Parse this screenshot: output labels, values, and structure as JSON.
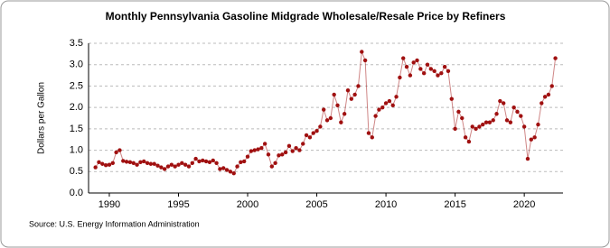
{
  "chart_data": {
    "type": "line",
    "title": "Monthly Pennsylvania Gasoline Midgrade Wholesale/Resale Price by Refiners",
    "y_label": "Dollars per Gallon",
    "source": "Source: U.S. Energy Information Administration",
    "xlim": [
      1988.5,
      2022.8
    ],
    "ylim": [
      0,
      3.5
    ],
    "xticks": [
      1990,
      1995,
      2000,
      2005,
      2010,
      2015,
      2020
    ],
    "yticks": [
      {
        "value": 0,
        "label": "0.0"
      },
      0.5,
      {
        "value": 1,
        "label": "1.0"
      },
      1.5,
      {
        "value": 2,
        "label": "2.0"
      },
      2.5,
      {
        "value": 3,
        "label": "3.0"
      },
      3.5
    ],
    "grid": true,
    "series": [
      {
        "name": "Midgrade",
        "color": "#a01010",
        "x": [
          1989,
          1989.25,
          1989.5,
          1989.75,
          1990,
          1990.25,
          1990.5,
          1990.75,
          1991,
          1991.25,
          1991.5,
          1991.75,
          1992,
          1992.25,
          1992.5,
          1992.75,
          1993,
          1993.25,
          1993.5,
          1993.75,
          1994,
          1994.25,
          1994.5,
          1994.75,
          1995,
          1995.25,
          1995.5,
          1995.75,
          1996,
          1996.25,
          1996.5,
          1996.75,
          1997,
          1997.25,
          1997.5,
          1997.75,
          1998,
          1998.25,
          1998.5,
          1998.75,
          1999,
          1999.25,
          1999.5,
          1999.75,
          2000,
          2000.25,
          2000.5,
          2000.75,
          2001,
          2001.25,
          2001.5,
          2001.75,
          2002,
          2002.25,
          2002.5,
          2002.75,
          2003,
          2003.25,
          2003.5,
          2003.75,
          2004,
          2004.25,
          2004.5,
          2004.75,
          2005,
          2005.25,
          2005.5,
          2005.75,
          2006,
          2006.25,
          2006.5,
          2006.75,
          2007,
          2007.25,
          2007.5,
          2007.75,
          2008,
          2008.25,
          2008.5,
          2008.75,
          2009,
          2009.25,
          2009.5,
          2009.75,
          2010,
          2010.25,
          2010.5,
          2010.75,
          2011,
          2011.25,
          2011.5,
          2011.75,
          2012,
          2012.25,
          2012.5,
          2012.75,
          2013,
          2013.25,
          2013.5,
          2013.75,
          2014,
          2014.25,
          2014.5,
          2014.75,
          2015,
          2015.25,
          2015.5,
          2015.75,
          2016,
          2016.25,
          2016.5,
          2016.75,
          2017,
          2017.25,
          2017.5,
          2017.75,
          2018,
          2018.25,
          2018.5,
          2018.75,
          2019,
          2019.25,
          2019.5,
          2019.75,
          2020,
          2020.25,
          2020.5,
          2020.75,
          2021,
          2021.25,
          2021.5,
          2021.75,
          2022,
          2022.25
        ],
        "values": [
          0.6,
          0.72,
          0.68,
          0.65,
          0.66,
          0.7,
          0.95,
          1.0,
          0.75,
          0.73,
          0.72,
          0.7,
          0.66,
          0.72,
          0.74,
          0.7,
          0.68,
          0.68,
          0.64,
          0.6,
          0.56,
          0.62,
          0.66,
          0.62,
          0.66,
          0.7,
          0.66,
          0.62,
          0.7,
          0.8,
          0.74,
          0.76,
          0.74,
          0.72,
          0.76,
          0.7,
          0.56,
          0.58,
          0.54,
          0.5,
          0.46,
          0.62,
          0.72,
          0.74,
          0.85,
          0.98,
          1.0,
          1.02,
          1.05,
          1.15,
          0.9,
          0.62,
          0.7,
          0.88,
          0.9,
          0.95,
          1.1,
          0.98,
          1.05,
          1.0,
          1.15,
          1.35,
          1.3,
          1.4,
          1.45,
          1.55,
          1.95,
          1.7,
          1.75,
          2.3,
          2.05,
          1.65,
          1.85,
          2.4,
          2.2,
          2.3,
          2.5,
          3.3,
          3.1,
          1.4,
          1.3,
          1.8,
          1.95,
          2.0,
          2.1,
          2.15,
          2.05,
          2.25,
          2.7,
          3.15,
          2.95,
          2.75,
          3.05,
          3.1,
          2.9,
          2.8,
          3.0,
          2.9,
          2.85,
          2.75,
          2.8,
          2.95,
          2.85,
          2.2,
          1.5,
          1.9,
          1.75,
          1.3,
          1.2,
          1.55,
          1.5,
          1.55,
          1.6,
          1.65,
          1.65,
          1.7,
          1.85,
          2.15,
          2.1,
          1.7,
          1.65,
          2.0,
          1.9,
          1.8,
          1.55,
          0.8,
          1.25,
          1.3,
          1.6,
          2.1,
          2.25,
          2.3,
          2.5,
          3.15
        ]
      }
    ]
  }
}
